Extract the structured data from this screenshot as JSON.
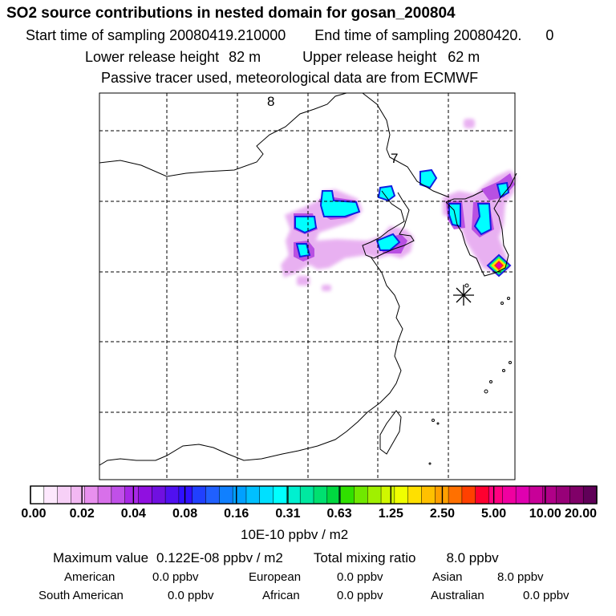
{
  "header": {
    "title": "SO2 source contributions in nested domain for gosan_200804",
    "start_label": "Start time of sampling 20080419.210000",
    "end_label": "End time of sampling 20080420.",
    "end_hour": "0",
    "lower_label": "Lower release height",
    "lower_value": "82 m",
    "upper_label": "Upper release height",
    "upper_value": "62 m",
    "tracer_note": "Passive tracer used, meteorological data are from ECMWF"
  },
  "map": {
    "time_markers": [
      "8",
      "7"
    ],
    "release_site": "asterisk"
  },
  "colorbar": {
    "tick_labels": [
      "0.00",
      "0.02",
      "0.04",
      "0.08",
      "0.16",
      "0.31",
      "0.63",
      "1.25",
      "2.50",
      "5.00",
      "10.00",
      "20.00"
    ],
    "units": "10E-10 ppbv / m2",
    "colors": [
      "#ffffff",
      "#fde8fd",
      "#f7d0f7",
      "#f2b8f2",
      "#e890ee",
      "#d870ea",
      "#c050e8",
      "#a828e6",
      "#9010e0",
      "#7010e0",
      "#5010f0",
      "#3010ff",
      "#2040ff",
      "#2060ff",
      "#1080ff",
      "#00a0ff",
      "#00c0ff",
      "#00e0ff",
      "#00ffff",
      "#00f0d0",
      "#00e8a0",
      "#00e070",
      "#00d840",
      "#30e000",
      "#70e800",
      "#a0f000",
      "#d0f800",
      "#f0ff00",
      "#ffe000",
      "#ffc000",
      "#ffa000",
      "#ff7000",
      "#ff4000",
      "#ff0030",
      "#ff0080",
      "#f000a0",
      "#e000b0",
      "#c80098",
      "#b00088",
      "#980078",
      "#800068",
      "#600058"
    ]
  },
  "summary": {
    "max_label": "Maximum value",
    "max_value": "0.122E-08 ppbv / m2",
    "total_label": "Total mixing ratio",
    "total_value": "8.0 ppbv",
    "regions": [
      {
        "name": "American",
        "value": "0.0 ppbv"
      },
      {
        "name": "European",
        "value": "0.0 ppbv"
      },
      {
        "name": "Asian",
        "value": "8.0 ppbv"
      },
      {
        "name": "South American",
        "value": "0.0 ppbv"
      },
      {
        "name": "African",
        "value": "0.0 ppbv"
      },
      {
        "name": "Australian",
        "value": "0.0 ppbv"
      }
    ]
  }
}
